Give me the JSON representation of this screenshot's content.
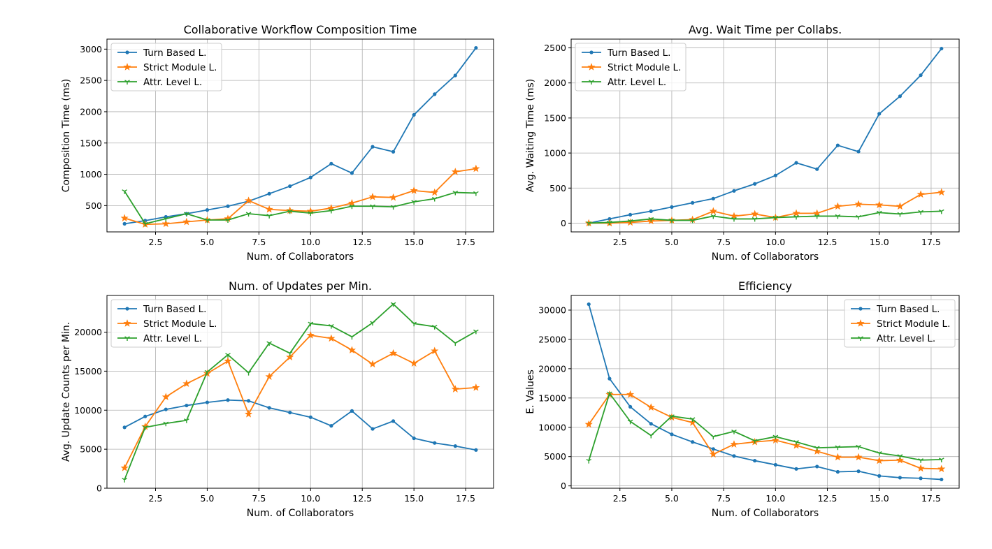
{
  "chart_data": [
    {
      "type": "line",
      "title": "Collaborative Workflow Composition Time",
      "xlabel": "Num. of Collaborators",
      "ylabel": "Composition Time (ms)",
      "xlim": [
        0.15,
        18.85
      ],
      "ylim": [
        80,
        3160
      ],
      "xticks": [
        2.5,
        5.0,
        7.5,
        10.0,
        12.5,
        15.0,
        17.5
      ],
      "yticks": [
        500,
        1000,
        1500,
        2000,
        2500,
        3000
      ],
      "grid": true,
      "legend": "top-left",
      "x": [
        1,
        2,
        3,
        4,
        5,
        6,
        7,
        8,
        9,
        10,
        11,
        12,
        13,
        14,
        15,
        16,
        17,
        18
      ],
      "series": [
        {
          "name": "Turn Based L.",
          "color": "#1f77b4",
          "marker": "point",
          "values": [
            210,
            260,
            320,
            370,
            430,
            490,
            570,
            690,
            810,
            950,
            1170,
            1020,
            1440,
            1360,
            1950,
            2280,
            2580,
            3020
          ]
        },
        {
          "name": "Strict Module L.",
          "color": "#ff7f0e",
          "marker": "star",
          "values": [
            300,
            200,
            210,
            240,
            270,
            290,
            580,
            440,
            420,
            410,
            460,
            540,
            640,
            630,
            740,
            710,
            1040,
            1090
          ]
        },
        {
          "name": "Attr. Level L.",
          "color": "#2ca02c",
          "marker": "tri",
          "values": [
            730,
            210,
            290,
            370,
            270,
            270,
            370,
            340,
            410,
            380,
            420,
            490,
            490,
            480,
            560,
            610,
            710,
            700
          ]
        }
      ]
    },
    {
      "type": "line",
      "title": "Avg. Wait Time per Collabs.",
      "xlabel": "Num. of Collaborators",
      "ylabel": "Avg. Waiting Time (ms)",
      "xlim": [
        0.15,
        18.85
      ],
      "ylim": [
        -125,
        2625
      ],
      "xticks": [
        2.5,
        5.0,
        7.5,
        10.0,
        12.5,
        15.0,
        17.5
      ],
      "yticks": [
        0,
        500,
        1000,
        1500,
        2000,
        2500
      ],
      "grid": true,
      "legend": "top-left",
      "x": [
        1,
        2,
        3,
        4,
        5,
        6,
        7,
        8,
        9,
        10,
        11,
        12,
        13,
        14,
        15,
        16,
        17,
        18
      ],
      "series": [
        {
          "name": "Turn Based L.",
          "color": "#1f77b4",
          "marker": "point",
          "values": [
            0,
            60,
            120,
            170,
            230,
            290,
            350,
            460,
            560,
            680,
            860,
            770,
            1110,
            1020,
            1560,
            1810,
            2110,
            2490
          ]
        },
        {
          "name": "Strict Module L.",
          "color": "#ff7f0e",
          "marker": "star",
          "values": [
            0,
            0,
            10,
            30,
            40,
            50,
            170,
            100,
            130,
            80,
            140,
            140,
            240,
            270,
            260,
            240,
            410,
            440
          ]
        },
        {
          "name": "Attr. Level L.",
          "color": "#2ca02c",
          "marker": "tri",
          "values": [
            0,
            10,
            30,
            60,
            40,
            40,
            100,
            60,
            60,
            80,
            90,
            100,
            100,
            90,
            150,
            130,
            160,
            170
          ]
        }
      ]
    },
    {
      "type": "line",
      "title": "Num. of Updates per Min.",
      "xlabel": "Num. of Collaborators",
      "ylabel": "Avg. Update Counts per Min.",
      "xlim": [
        0.15,
        18.85
      ],
      "ylim": [
        0,
        24700
      ],
      "xticks": [
        2.5,
        5.0,
        7.5,
        10.0,
        12.5,
        15.0,
        17.5
      ],
      "yticks": [
        0,
        5000,
        10000,
        15000,
        20000
      ],
      "grid": true,
      "legend": "top-left",
      "x": [
        1,
        2,
        3,
        4,
        5,
        6,
        7,
        8,
        9,
        10,
        11,
        12,
        13,
        14,
        15,
        16,
        17,
        18
      ],
      "series": [
        {
          "name": "Turn Based L.",
          "color": "#1f77b4",
          "marker": "point",
          "values": [
            7800,
            9200,
            10100,
            10600,
            11000,
            11300,
            11200,
            10300,
            9700,
            9100,
            8000,
            9900,
            7600,
            8600,
            6400,
            5800,
            5400,
            4900
          ]
        },
        {
          "name": "Strict Module L.",
          "color": "#ff7f0e",
          "marker": "star",
          "values": [
            2600,
            7900,
            11700,
            13400,
            14700,
            16300,
            9500,
            14300,
            16800,
            19600,
            19200,
            17700,
            15900,
            17300,
            16000,
            17600,
            12700,
            12900
          ]
        },
        {
          "name": "Attr. Level L.",
          "color": "#2ca02c",
          "marker": "tri",
          "values": [
            1100,
            7800,
            8300,
            8700,
            14900,
            17100,
            14800,
            18600,
            17300,
            21100,
            20800,
            19400,
            21200,
            23600,
            21100,
            20700,
            18600,
            20100
          ]
        }
      ]
    },
    {
      "type": "line",
      "title": "Efficiency",
      "xlabel": "Num. of Collaborators",
      "ylabel": "E. Values",
      "xlim": [
        0.15,
        18.85
      ],
      "ylim": [
        -400,
        32500
      ],
      "xticks": [
        2.5,
        5.0,
        7.5,
        10.0,
        12.5,
        15.0,
        17.5
      ],
      "yticks": [
        0,
        5000,
        10000,
        15000,
        20000,
        25000,
        30000
      ],
      "grid": true,
      "legend": "top-right",
      "x": [
        1,
        2,
        3,
        4,
        5,
        6,
        7,
        8,
        9,
        10,
        11,
        12,
        13,
        14,
        15,
        16,
        17,
        18
      ],
      "series": [
        {
          "name": "Turn Based L.",
          "color": "#1f77b4",
          "marker": "point",
          "values": [
            31000,
            18300,
            13500,
            10600,
            8800,
            7500,
            6300,
            5100,
            4300,
            3600,
            2900,
            3300,
            2400,
            2500,
            1700,
            1400,
            1300,
            1100
          ]
        },
        {
          "name": "Strict Module L.",
          "color": "#ff7f0e",
          "marker": "star",
          "values": [
            10500,
            15600,
            15600,
            13400,
            11700,
            10800,
            5400,
            7100,
            7500,
            7800,
            6900,
            5900,
            4900,
            4900,
            4300,
            4400,
            3000,
            2900
          ]
        },
        {
          "name": "Attr. Level L.",
          "color": "#2ca02c",
          "marker": "tri",
          "values": [
            4300,
            15800,
            11000,
            8600,
            11900,
            11400,
            8400,
            9300,
            7700,
            8400,
            7500,
            6500,
            6600,
            6700,
            5600,
            5100,
            4400,
            4500
          ]
        }
      ]
    }
  ]
}
